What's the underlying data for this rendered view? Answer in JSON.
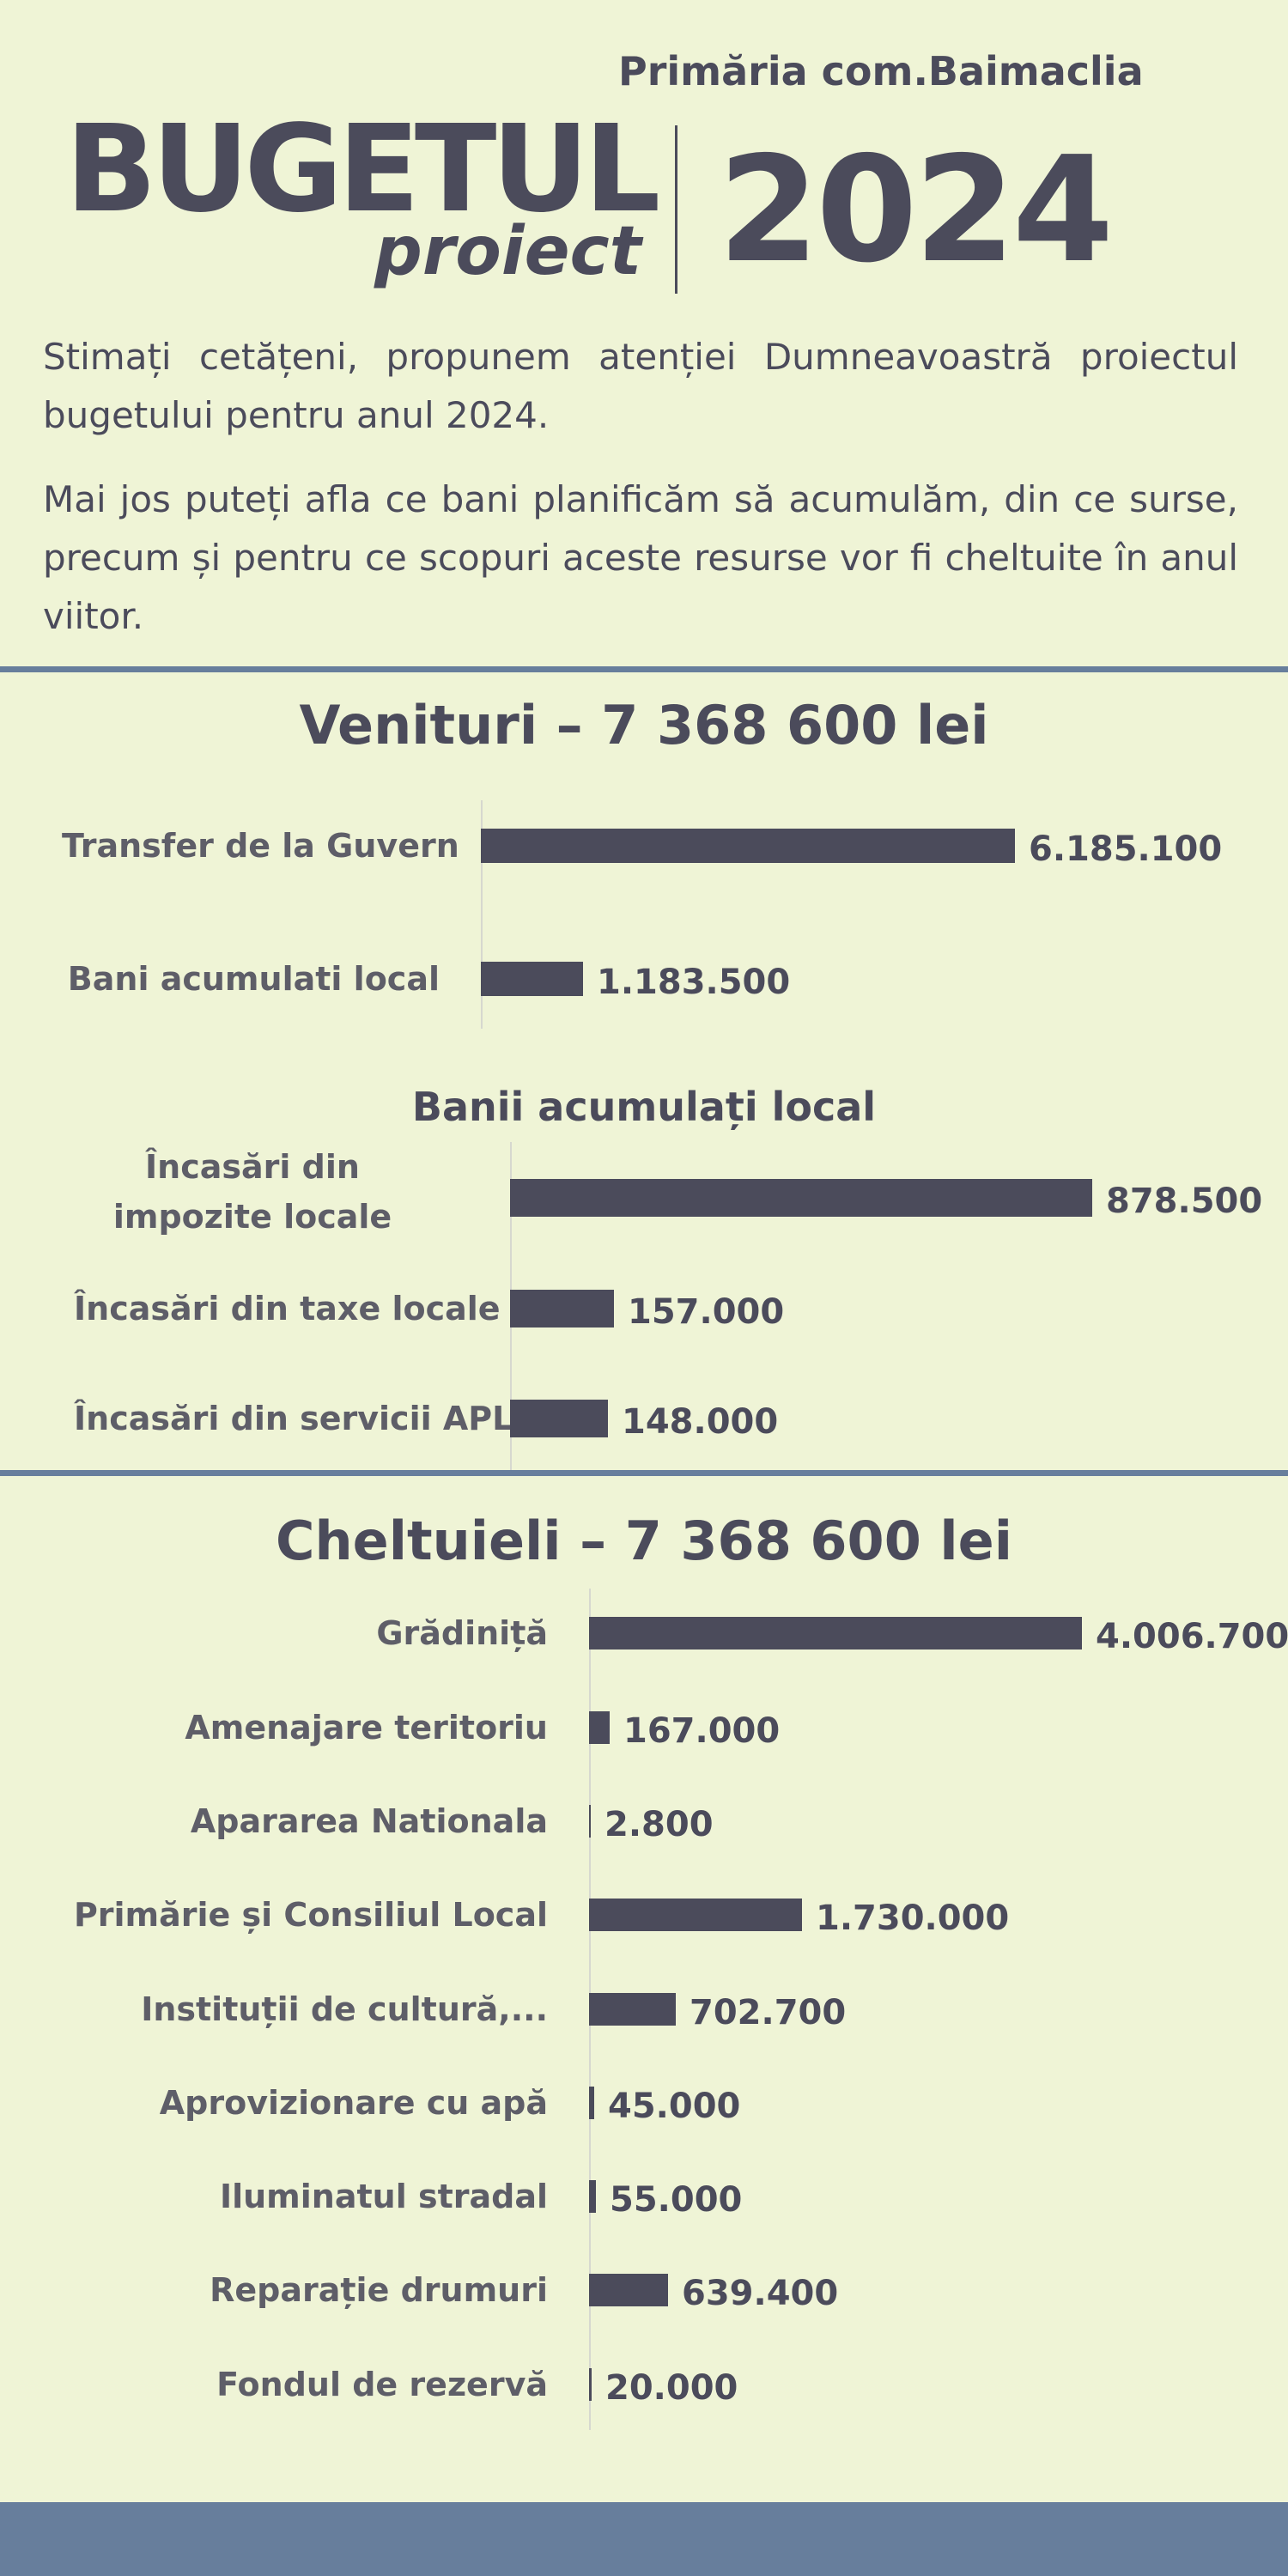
{
  "header": {
    "municipality": "Primăria com.Baimaclia",
    "title": "BUGETUL",
    "subtitle": "proiect",
    "year": "2024"
  },
  "intro": {
    "p1": "Stimați cetățeni, propunem atenției Dumneavoastră proiectul bugetului pentru anul 2024.",
    "p2": "Mai jos puteți afla ce bani planificăm să acumulăm, din ce surse, precum și pentru ce scopuri aceste resurse vor fi cheltuite în anul viitor."
  },
  "colors": {
    "background": "#eff4d6",
    "bar": "#4b4b5b",
    "text": "#4b4b5b",
    "category_text": "#5e5e68",
    "rule": "#677e9c",
    "axis": "#d6d8cf"
  },
  "chart_data": [
    {
      "type": "bar",
      "orientation": "horizontal",
      "title": "Venituri – 7 368 600 lei",
      "categories": [
        "Transfer de la Guvern",
        "Bani acumulati local"
      ],
      "values": [
        6185100,
        1183500
      ],
      "value_labels": [
        "6.185.100",
        "1.183.500"
      ],
      "xlim": [
        0,
        6185100
      ],
      "grid": false,
      "legend": "none"
    },
    {
      "type": "bar",
      "orientation": "horizontal",
      "title": "Banii acumulați local",
      "categories": [
        "Încasări din impozite locale",
        "Încasări din taxe locale",
        "Încasări din servicii APL"
      ],
      "values": [
        878500,
        157000,
        148000
      ],
      "value_labels": [
        "878.500",
        "157.000",
        "148.000"
      ],
      "xlim": [
        0,
        878500
      ],
      "grid": false,
      "legend": "none"
    },
    {
      "type": "bar",
      "orientation": "horizontal",
      "title": "Cheltuieli – 7 368 600 lei",
      "categories": [
        "Grădiniță",
        "Amenajare teritoriu",
        "Apararea Nationala",
        "Primărie și Consiliul Local",
        "Instituții de cultură,...",
        "Aprovizionare cu apă",
        "Iluminatul stradal",
        "Reparație drumuri",
        "Fondul de rezervă"
      ],
      "values": [
        4006700,
        167000,
        2800,
        1730000,
        702700,
        45000,
        55000,
        639400,
        20000
      ],
      "value_labels": [
        "4.006.700",
        "167.000",
        "2.800",
        "1.730.000",
        "702.700",
        "45.000",
        "55.000",
        "639.400",
        "20.000"
      ],
      "xlim": [
        0,
        4006700
      ],
      "grid": false,
      "legend": "none"
    }
  ]
}
